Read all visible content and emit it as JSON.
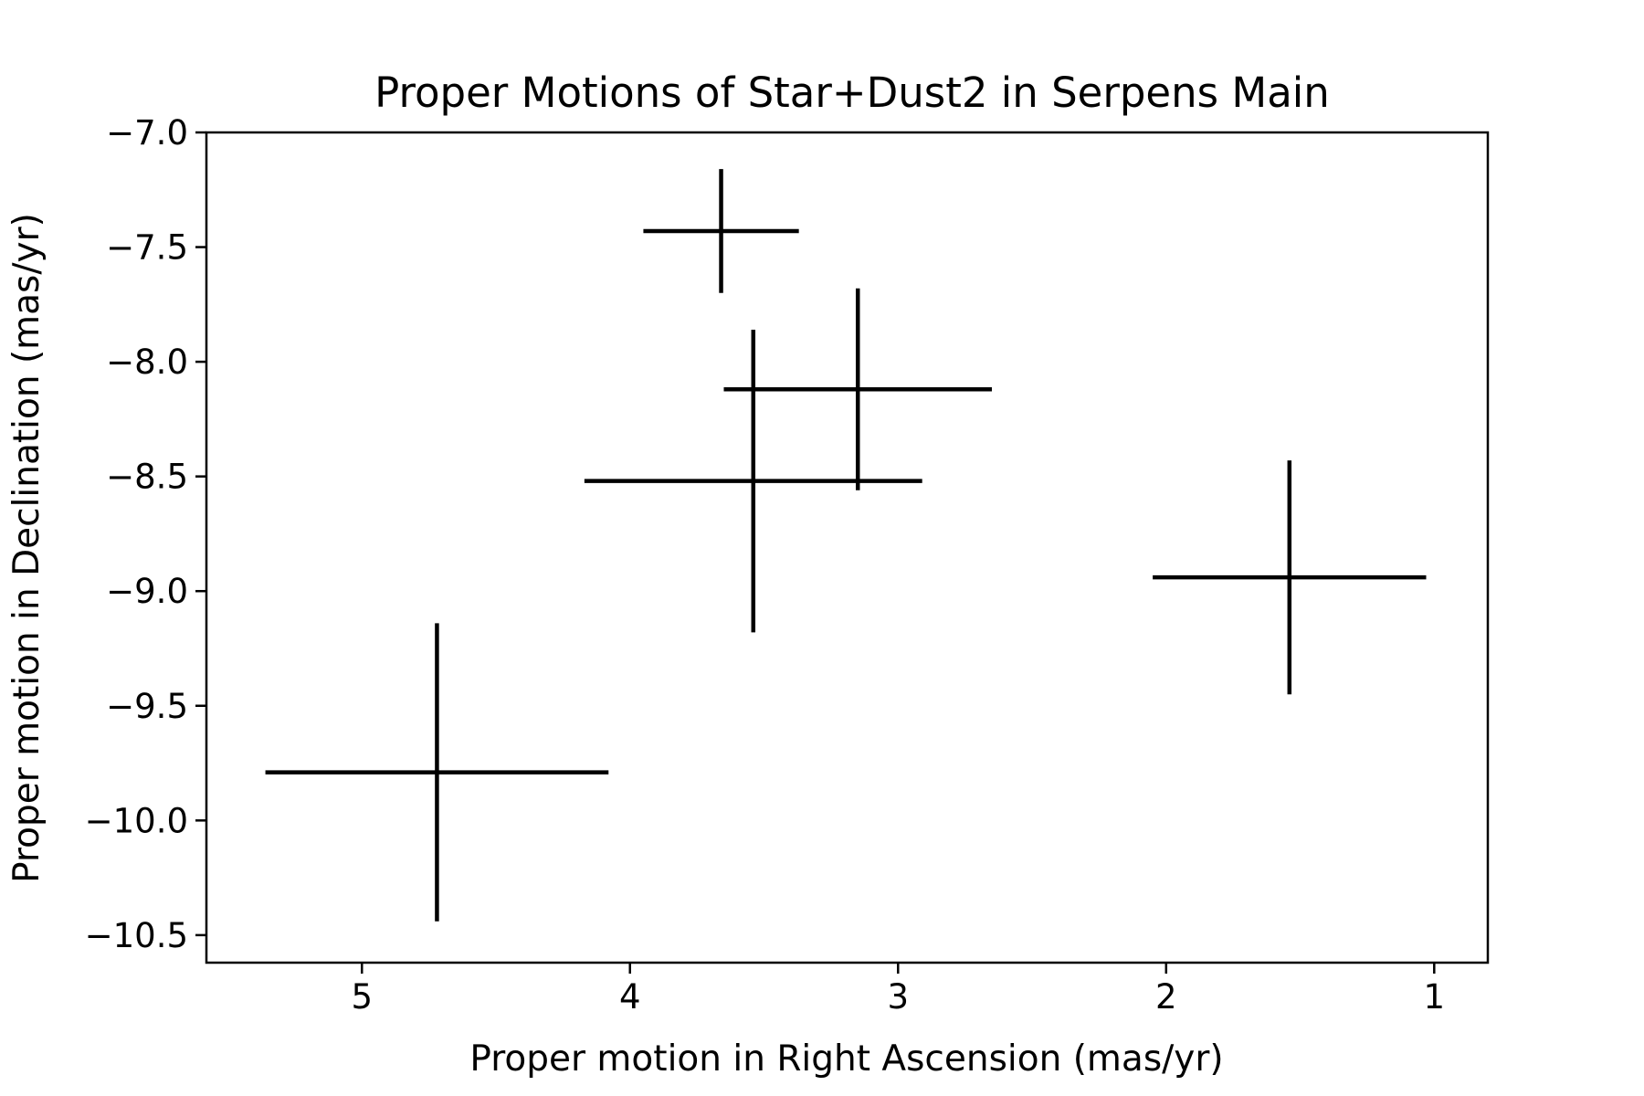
{
  "chart_data": {
    "type": "scatter",
    "title": "Proper Motions of Star+Dust2 in Serpens Main",
    "xlabel": "Proper motion in Right Ascension (mas/yr)",
    "ylabel": "Proper motion in Declination (mas/yr)",
    "xlim": [
      5.58,
      0.8
    ],
    "ylim": [
      -10.62,
      -7.0
    ],
    "x_inverted": true,
    "grid": false,
    "xticks": [
      5,
      4,
      3,
      2,
      1
    ],
    "xtick_labels": [
      "5",
      "4",
      "3",
      "2",
      "1"
    ],
    "yticks": [
      -7.0,
      -7.5,
      -8.0,
      -8.5,
      -9.0,
      -9.5,
      -10.0,
      -10.5
    ],
    "ytick_labels": [
      "−7.0",
      "−7.5",
      "−8.0",
      "−8.5",
      "−9.0",
      "−9.5",
      "−10.0",
      "−10.5"
    ],
    "series": [
      {
        "points": [
          {
            "x": 3.66,
            "y": -7.43,
            "xerr": 0.29,
            "yerr": 0.27
          },
          {
            "x": 3.15,
            "y": -8.12,
            "xerr": 0.5,
            "yerr": 0.44
          },
          {
            "x": 3.54,
            "y": -8.52,
            "xerr": 0.63,
            "yerr": 0.66
          },
          {
            "x": 1.54,
            "y": -8.94,
            "xerr": 0.51,
            "yerr": 0.51
          },
          {
            "x": 4.72,
            "y": -9.79,
            "xerr": 0.64,
            "yerr": 0.65
          }
        ],
        "color": "#000000"
      }
    ]
  }
}
